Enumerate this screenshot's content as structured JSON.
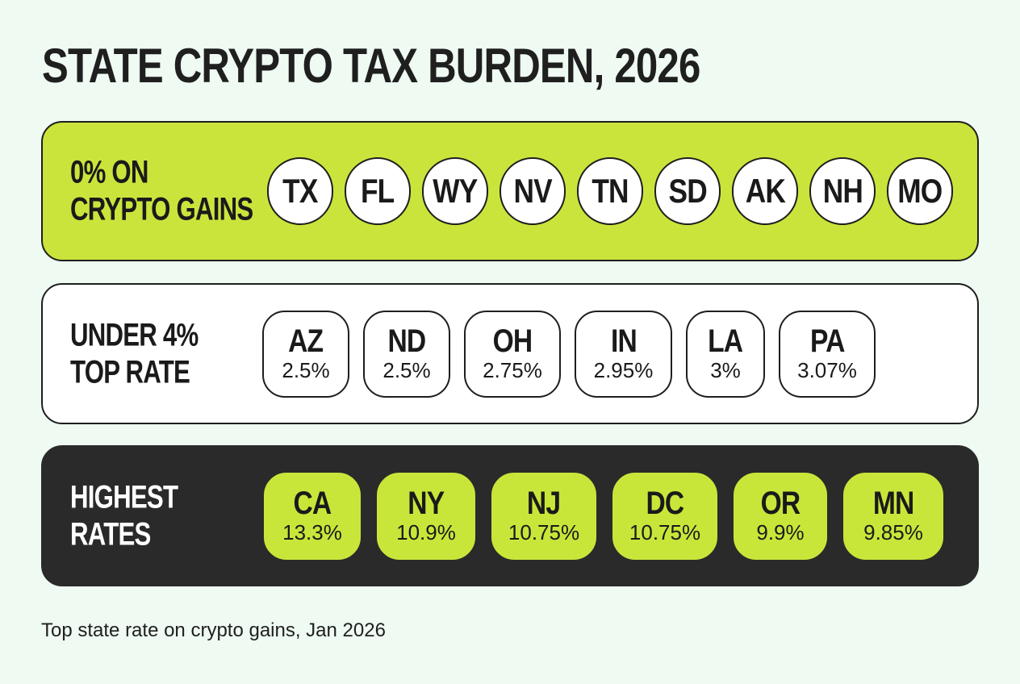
{
  "title": "STATE CRYPTO TAX BURDEN, 2026",
  "colors": {
    "background": "#eefaf2",
    "lime": "#cbe43c",
    "dark": "#2a2a2a",
    "white": "#ffffff"
  },
  "tiers": [
    {
      "label_line1": "0% ON",
      "label_line2": "CRYPTO GAINS",
      "states": [
        {
          "code": "TX"
        },
        {
          "code": "FL"
        },
        {
          "code": "WY"
        },
        {
          "code": "NV"
        },
        {
          "code": "TN"
        },
        {
          "code": "SD"
        },
        {
          "code": "AK"
        },
        {
          "code": "NH"
        },
        {
          "code": "MO"
        }
      ]
    },
    {
      "label_line1": "UNDER 4%",
      "label_line2": "TOP RATE",
      "states": [
        {
          "code": "AZ",
          "rate": "2.5%"
        },
        {
          "code": "ND",
          "rate": "2.5%"
        },
        {
          "code": "OH",
          "rate": "2.75%"
        },
        {
          "code": "IN",
          "rate": "2.95%"
        },
        {
          "code": "LA",
          "rate": "3%"
        },
        {
          "code": "PA",
          "rate": "3.07%"
        }
      ]
    },
    {
      "label_line1": "HIGHEST",
      "label_line2": "RATES",
      "states": [
        {
          "code": "CA",
          "rate": "13.3%"
        },
        {
          "code": "NY",
          "rate": "10.9%"
        },
        {
          "code": "NJ",
          "rate": "10.75%"
        },
        {
          "code": "DC",
          "rate": "10.75%"
        },
        {
          "code": "OR",
          "rate": "9.9%"
        },
        {
          "code": "MN",
          "rate": "9.85%"
        }
      ]
    }
  ],
  "footnote": "Top state rate on crypto gains, Jan 2026"
}
